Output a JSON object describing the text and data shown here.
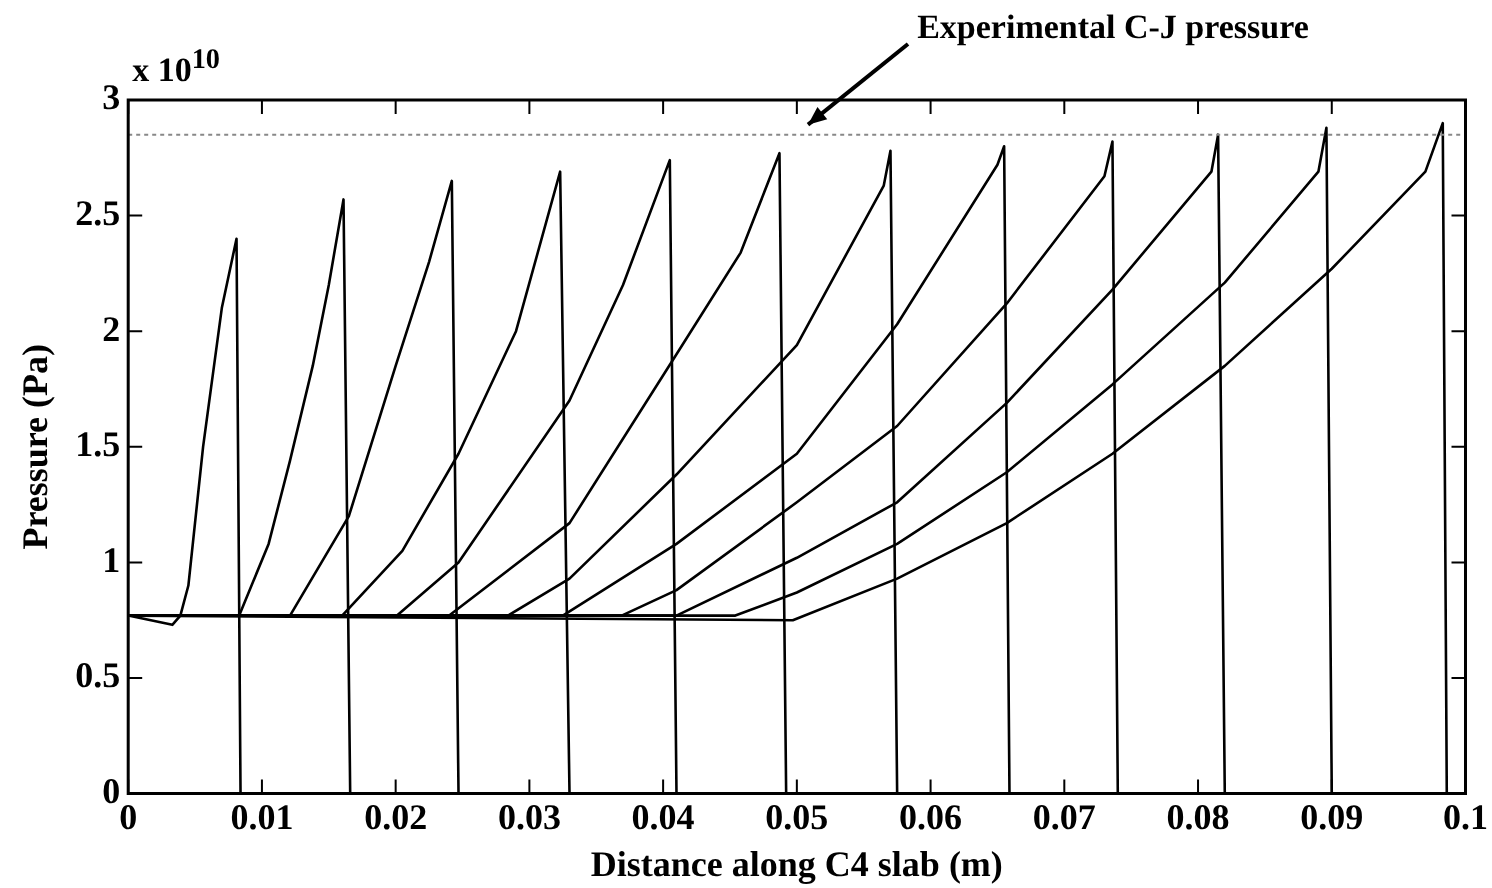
{
  "chart_data": {
    "type": "line",
    "xlabel": "Distance along C4 slab (m)",
    "ylabel": "Pressure (Pa)",
    "xlim": [
      0,
      0.1
    ],
    "xticks": [
      0,
      0.01,
      0.02,
      0.03,
      0.04,
      0.05,
      0.06,
      0.07,
      0.08,
      0.09,
      0.1
    ],
    "ylim": [
      0,
      3
    ],
    "yticks": [
      0,
      0.5,
      1,
      1.5,
      2,
      2.5,
      3
    ],
    "grid": false,
    "legend": false,
    "marker": "none",
    "line_style": "solid",
    "annotations": [
      "x 10$^{10}$"
    ],
    "ref_lines": [
      {
        "axis": "y",
        "value": 2.85,
        "label": "Experimental C-J pressure",
        "color": "#888888",
        "line_style": "dotted"
      }
    ],
    "series": [
      {
        "color": "#000000",
        "x": [
          0,
          0.0033,
          0.0039,
          0.0045,
          0.0056,
          0.007,
          0.0081,
          0.0084,
          0.1
        ],
        "values": [
          0.77,
          0.73,
          0.77,
          0.9,
          1.5,
          2.1,
          2.4,
          0,
          0
        ]
      },
      {
        "color": "#000000",
        "x": [
          0,
          0.0083,
          0.0105,
          0.0121,
          0.0138,
          0.015,
          0.0161,
          0.0166,
          0.1
        ],
        "values": [
          0.77,
          0.77,
          1.08,
          1.44,
          1.85,
          2.2,
          2.57,
          0,
          0
        ]
      },
      {
        "color": "#000000",
        "x": [
          0,
          0.0121,
          0.0165,
          0.02,
          0.0225,
          0.0242,
          0.0247,
          0.1
        ],
        "values": [
          0.77,
          0.77,
          1.2,
          1.85,
          2.3,
          2.65,
          0,
          0
        ]
      },
      {
        "color": "#000000",
        "x": [
          0,
          0.016,
          0.0205,
          0.0247,
          0.029,
          0.0323,
          0.033,
          0.1
        ],
        "values": [
          0.77,
          0.77,
          1.05,
          1.47,
          2.0,
          2.69,
          0,
          0
        ]
      },
      {
        "color": "#000000",
        "x": [
          0,
          0.0201,
          0.0247,
          0.033,
          0.037,
          0.0405,
          0.041,
          0.1
        ],
        "values": [
          0.77,
          0.77,
          1.0,
          1.7,
          2.2,
          2.74,
          0,
          0
        ]
      },
      {
        "color": "#000000",
        "x": [
          0,
          0.024,
          0.033,
          0.041,
          0.0458,
          0.0487,
          0.0492,
          0.1
        ],
        "values": [
          0.77,
          0.77,
          1.17,
          1.9,
          2.34,
          2.77,
          0,
          0
        ]
      },
      {
        "color": "#000000",
        "x": [
          0,
          0.0284,
          0.033,
          0.041,
          0.05,
          0.0565,
          0.057,
          0.0575,
          0.1
        ],
        "values": [
          0.77,
          0.77,
          0.93,
          1.38,
          1.94,
          2.63,
          2.78,
          0,
          0
        ]
      },
      {
        "color": "#000000",
        "x": [
          0,
          0.0325,
          0.041,
          0.05,
          0.0575,
          0.065,
          0.0655,
          0.0659,
          0.1
        ],
        "values": [
          0.77,
          0.77,
          1.08,
          1.47,
          2.03,
          2.72,
          2.8,
          0,
          0
        ]
      },
      {
        "color": "#000000",
        "x": [
          0,
          0.0369,
          0.041,
          0.05,
          0.0575,
          0.0657,
          0.073,
          0.0736,
          0.074,
          0.1
        ],
        "values": [
          0.77,
          0.77,
          0.88,
          1.26,
          1.59,
          2.12,
          2.67,
          2.82,
          0,
          0
        ]
      },
      {
        "color": "#000000",
        "x": [
          0,
          0.041,
          0.05,
          0.0575,
          0.0657,
          0.0736,
          0.081,
          0.0815,
          0.082,
          0.1
        ],
        "values": [
          0.77,
          0.77,
          1.02,
          1.26,
          1.69,
          2.18,
          2.69,
          2.85,
          0,
          0
        ]
      },
      {
        "color": "#000000",
        "x": [
          0,
          0.0454,
          0.05,
          0.0575,
          0.0657,
          0.0736,
          0.082,
          0.089,
          0.0896,
          0.09,
          0.1
        ],
        "values": [
          0.77,
          0.77,
          0.87,
          1.08,
          1.39,
          1.77,
          2.21,
          2.69,
          2.88,
          0,
          0
        ]
      },
      {
        "color": "#000000",
        "x": [
          0,
          0.0497,
          0.0575,
          0.0657,
          0.0736,
          0.082,
          0.09,
          0.097,
          0.0983,
          0.0986,
          0.1
        ],
        "values": [
          0.77,
          0.75,
          0.93,
          1.17,
          1.47,
          1.85,
          2.27,
          2.69,
          2.9,
          0,
          0
        ]
      }
    ]
  }
}
